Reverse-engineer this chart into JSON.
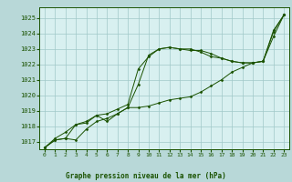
{
  "background_color": "#b8d8d8",
  "plot_bg_color": "#d8f0f0",
  "grid_color": "#a0c8c8",
  "line_color": "#1a5200",
  "marker_color": "#1a5200",
  "title": "Graphe pression niveau de la mer (hPa)",
  "xlim": [
    -0.5,
    23.5
  ],
  "ylim": [
    1016.5,
    1025.7
  ],
  "yticks": [
    1017,
    1018,
    1019,
    1020,
    1021,
    1022,
    1023,
    1024,
    1025
  ],
  "xticks": [
    0,
    1,
    2,
    3,
    4,
    5,
    6,
    7,
    8,
    9,
    10,
    11,
    12,
    13,
    14,
    15,
    16,
    17,
    18,
    19,
    20,
    21,
    22,
    23
  ],
  "series": [
    [
      1016.6,
      1017.1,
      1017.2,
      1017.1,
      1017.8,
      1018.3,
      1018.5,
      1018.8,
      1019.2,
      1019.2,
      1019.3,
      1019.5,
      1019.7,
      1019.8,
      1019.9,
      1020.2,
      1020.6,
      1021.0,
      1021.5,
      1021.8,
      1022.1,
      1022.2,
      1024.1,
      1025.2
    ],
    [
      1016.6,
      1017.2,
      1017.6,
      1018.1,
      1018.3,
      1018.7,
      1018.8,
      1019.1,
      1019.4,
      1021.7,
      1022.5,
      1023.0,
      1023.1,
      1023.0,
      1023.0,
      1022.8,
      1022.5,
      1022.4,
      1022.2,
      1022.1,
      1022.1,
      1022.2,
      1024.2,
      1025.2
    ],
    [
      1016.6,
      1017.1,
      1017.2,
      1018.1,
      1018.2,
      1018.7,
      1018.3,
      1018.8,
      1019.2,
      1020.7,
      1022.6,
      1023.0,
      1023.1,
      1023.0,
      1022.9,
      1022.9,
      1022.7,
      1022.4,
      1022.2,
      1022.1,
      1022.1,
      1022.2,
      1023.8,
      1025.2
    ]
  ],
  "figwidth": 3.2,
  "figheight": 2.0,
  "dpi": 100
}
